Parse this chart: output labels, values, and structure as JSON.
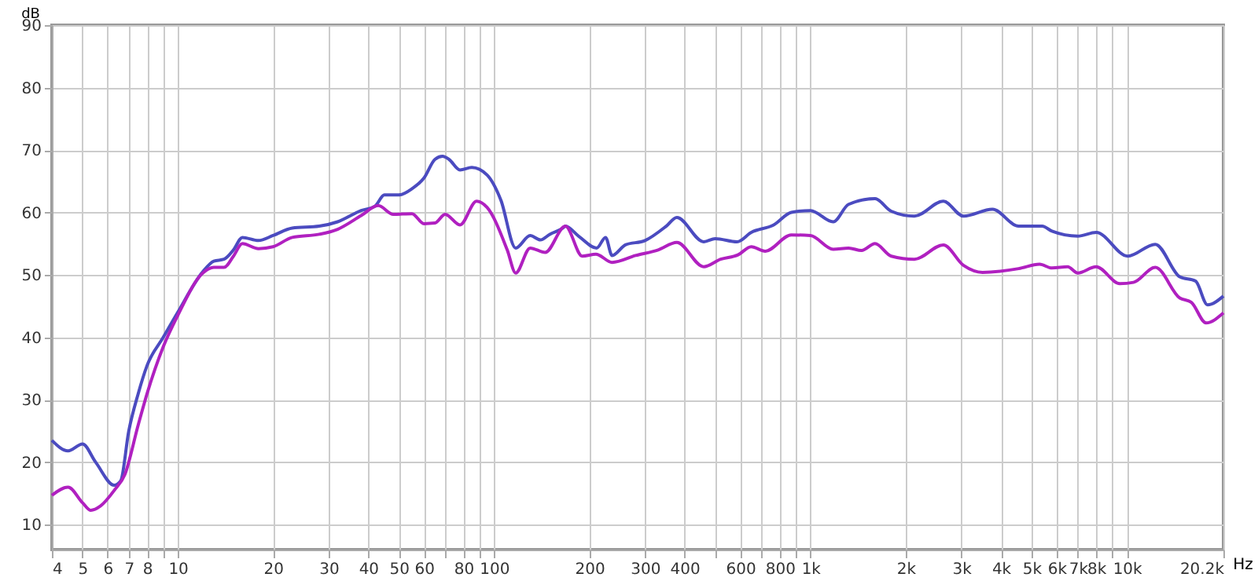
{
  "chart_data": {
    "type": "line",
    "xlabel": "Hz",
    "ylabel": "dB",
    "log": "x",
    "grid": true,
    "line_style": "solid",
    "marker": "none",
    "xlim": [
      4,
      20200
    ],
    "ylim": [
      6,
      90
    ],
    "yticks": [
      10,
      20,
      30,
      40,
      50,
      60,
      70,
      80,
      90
    ],
    "xticks": [
      4,
      5,
      6,
      7,
      8,
      {
        "value": 9,
        "label": null
      },
      10,
      20,
      30,
      40,
      50,
      60,
      {
        "value": 70,
        "label": null
      },
      80,
      {
        "value": 90,
        "label": null
      },
      100,
      200,
      300,
      400,
      {
        "value": 500,
        "label": null
      },
      600,
      {
        "value": 700,
        "label": null
      },
      800,
      {
        "value": 900,
        "label": null
      },
      {
        "value": 1000,
        "label": "1k"
      },
      {
        "value": 2000,
        "label": "2k"
      },
      {
        "value": 3000,
        "label": "3k"
      },
      {
        "value": 4000,
        "label": "4k"
      },
      {
        "value": 5000,
        "label": "5k"
      },
      {
        "value": 6000,
        "label": "6k"
      },
      {
        "value": 7000,
        "label": "7k"
      },
      {
        "value": 8000,
        "label": "8k"
      },
      {
        "value": 9000,
        "label": null
      },
      {
        "value": 10000,
        "label": "10k"
      },
      {
        "value": 20200,
        "label": "20.2k"
      }
    ],
    "series": [
      {
        "color": "#4b4bc0",
        "x": [
          4,
          4.5,
          5,
          5.5,
          6.3,
          6.6,
          7,
          7.5,
          8,
          9,
          10,
          12,
          13,
          14,
          15,
          16,
          18,
          20,
          23,
          28,
          32,
          38,
          42,
          45,
          50,
          55,
          60,
          65,
          68.7,
          72,
          78,
          85,
          95,
          105,
          117,
          130,
          140,
          150,
          165,
          168,
          185,
          211,
          225,
          236,
          260,
          300,
          350,
          378,
          460,
          500,
          586,
          650,
          765,
          870,
          1000,
          1180,
          1320,
          1600,
          1800,
          2130,
          2630,
          3050,
          3760,
          4550,
          5400,
          5800,
          7000,
          8000,
          10070,
          12300,
          14700,
          16500,
          18000,
          20200
        ],
        "values": [
          23.5,
          21.8,
          22.9,
          20,
          16.3,
          17,
          25,
          31,
          35.5,
          40,
          44,
          50.5,
          52.2,
          52.5,
          54,
          56,
          55.5,
          56.3,
          57.5,
          57.8,
          58.5,
          60.3,
          61,
          62.8,
          62.8,
          63.8,
          65.5,
          68.5,
          69,
          68.5,
          66.8,
          67.2,
          66,
          62,
          54.3,
          56.3,
          55.6,
          56.5,
          57.5,
          57.8,
          56.2,
          54.3,
          56,
          53.1,
          54.8,
          55.5,
          57.8,
          59.2,
          55.3,
          55.8,
          55.3,
          56.8,
          58,
          60,
          60.3,
          58.5,
          61.3,
          62.2,
          60.2,
          59.4,
          61.8,
          59.4,
          60.5,
          57.8,
          57.8,
          57,
          56.2,
          56.8,
          53,
          54.9,
          49.7,
          49,
          45.2,
          46.6
        ]
      },
      {
        "color": "#b020c0",
        "x": [
          4,
          4.5,
          5,
          5.3,
          5.7,
          6.3,
          6.8,
          7.5,
          8,
          9,
          10,
          12,
          13,
          14,
          15,
          16,
          18,
          20,
          23,
          28,
          32,
          38,
          43,
          48,
          55,
          60,
          65,
          70,
          78,
          88,
          95,
          110,
          117,
          130,
          145,
          168,
          190,
          210,
          236,
          280,
          330,
          378,
          460,
          520,
          590,
          650,
          720,
          870,
          1000,
          1180,
          1320,
          1450,
          1600,
          1800,
          2130,
          2630,
          3050,
          3500,
          4550,
          5300,
          5800,
          6500,
          7000,
          8000,
          9500,
          10500,
          12300,
          14700,
          16000,
          17800,
          20200
        ],
        "values": [
          14.7,
          16,
          13.5,
          12.3,
          13,
          15.5,
          18,
          26,
          31,
          38.5,
          43.5,
          50.3,
          51.2,
          51.2,
          53,
          55,
          54.2,
          54.5,
          56,
          56.5,
          57.3,
          59.5,
          61.1,
          59.7,
          59.8,
          58.2,
          58.3,
          59.7,
          58,
          61.8,
          60.8,
          54,
          50.3,
          54.3,
          53.6,
          57.8,
          53,
          53.3,
          52,
          53.1,
          54,
          55.2,
          51.3,
          52.5,
          53.2,
          54.5,
          53.8,
          56.4,
          56.3,
          54.1,
          54.3,
          53.9,
          55,
          53,
          52.5,
          54.8,
          51.5,
          50.4,
          51,
          51.7,
          51.1,
          51.3,
          50.3,
          51.3,
          48.6,
          48.8,
          51.2,
          46.3,
          45.6,
          42.3,
          43.9
        ]
      }
    ]
  }
}
